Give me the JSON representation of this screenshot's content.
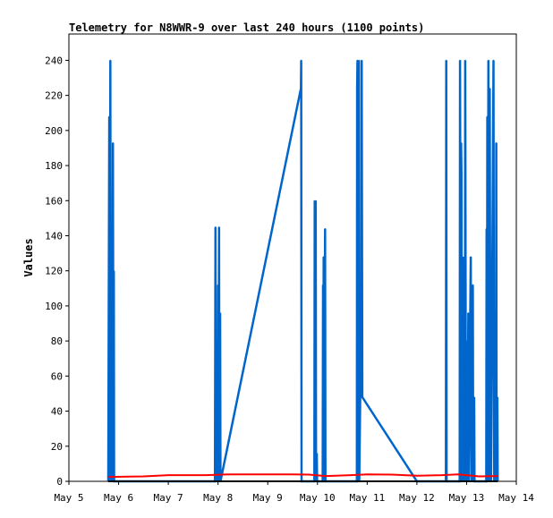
{
  "chart_data": {
    "type": "line",
    "title": "Telemetry for N8WWR-9 over last 240 hours (1100 points)",
    "xlabel": "",
    "ylabel": "Values",
    "xlim": [
      "May 5 00:00",
      "May 14 00:00"
    ],
    "ylim": [
      0,
      255
    ],
    "grid": false,
    "x_ticks": [
      "May 5",
      "May 6",
      "May 7",
      "May 8",
      "May 9",
      "May 10",
      "May 11",
      "May 12",
      "May 13",
      "May 14"
    ],
    "y_ticks": [
      0,
      20,
      40,
      60,
      80,
      100,
      120,
      140,
      160,
      180,
      200,
      220,
      240
    ],
    "series": [
      {
        "color": "#0066cc",
        "style": "spikes",
        "points": [
          [
            "May 5 19:00",
            0
          ],
          [
            "May 5 19:30",
            208
          ],
          [
            "May 5 19:45",
            0
          ],
          [
            "May 5 20:00",
            240
          ],
          [
            "May 5 20:15",
            0
          ],
          [
            "May 5 20:45",
            145
          ],
          [
            "May 5 21:00",
            0
          ],
          [
            "May 5 21:15",
            193
          ],
          [
            "May 5 21:30",
            0
          ],
          [
            "May 5 21:40",
            120
          ],
          [
            "May 5 21:50",
            0
          ],
          [
            "May 7 22:30",
            0
          ],
          [
            "May 7 22:45",
            145
          ],
          [
            "May 7 23:00",
            0
          ],
          [
            "May 7 23:40",
            64
          ],
          [
            "May 7 23:50",
            0
          ],
          [
            "May 8 00:00",
            112
          ],
          [
            "May 8 00:10",
            0
          ],
          [
            "May 8 00:30",
            145
          ],
          [
            "May 8 00:40",
            0
          ],
          [
            "May 8 01:00",
            96
          ],
          [
            "May 8 01:10",
            0
          ],
          [
            "May 9 16:00",
            224
          ],
          [
            "May 9 16:10",
            240
          ],
          [
            "May 9 16:20",
            0
          ],
          [
            "May 9 22:30",
            0
          ],
          [
            "May 9 22:40",
            160
          ],
          [
            "May 9 22:50",
            64
          ],
          [
            "May 9 23:10",
            160
          ],
          [
            "May 9 23:20",
            0
          ],
          [
            "May 9 23:40",
            16
          ],
          [
            "May 9 23:50",
            0
          ],
          [
            "May 10 02:30",
            0
          ],
          [
            "May 10 02:40",
            112
          ],
          [
            "May 10 02:50",
            0
          ],
          [
            "May 10 03:00",
            128
          ],
          [
            "May 10 03:10",
            0
          ],
          [
            "May 10 03:40",
            144
          ],
          [
            "May 10 03:50",
            0
          ],
          [
            "May 10 19:00",
            0
          ],
          [
            "May 10 19:10",
            224
          ],
          [
            "May 10 19:20",
            240
          ],
          [
            "May 10 19:40",
            0
          ],
          [
            "May 10 20:00",
            240
          ],
          [
            "May 10 20:10",
            0
          ],
          [
            "May 10 21:10",
            104
          ],
          [
            "May 10 21:20",
            240
          ],
          [
            "May 10 21:40",
            48
          ],
          [
            "May 12 00:00",
            0
          ],
          [
            "May 12 14:00",
            0
          ],
          [
            "May 12 14:10",
            240
          ],
          [
            "May 12 14:20",
            0
          ],
          [
            "May 12 20:40",
            0
          ],
          [
            "May 12 20:50",
            240
          ],
          [
            "May 12 21:00",
            144
          ],
          [
            "May 12 21:20",
            193
          ],
          [
            "May 12 21:30",
            176
          ],
          [
            "May 12 21:40",
            0
          ],
          [
            "May 12 22:00",
            128
          ],
          [
            "May 12 22:10",
            0
          ],
          [
            "May 12 23:00",
            128
          ],
          [
            "May 12 23:10",
            0
          ],
          [
            "May 12 23:20",
            240
          ],
          [
            "May 12 23:30",
            128
          ],
          [
            "May 12 23:40",
            0
          ],
          [
            "May 13 00:00",
            80
          ],
          [
            "May 13 00:10",
            64
          ],
          [
            "May 13 00:20",
            0
          ],
          [
            "May 13 00:50",
            96
          ],
          [
            "May 13 01:00",
            0
          ],
          [
            "May 13 02:00",
            128
          ],
          [
            "May 13 02:10",
            48
          ],
          [
            "May 13 02:20",
            0
          ],
          [
            "May 13 03:00",
            112
          ],
          [
            "May 13 03:10",
            0
          ],
          [
            "May 13 03:40",
            48
          ],
          [
            "May 13 03:50",
            0
          ],
          [
            "May 13 09:30",
            0
          ],
          [
            "May 13 09:40",
            144
          ],
          [
            "May 13 09:50",
            0
          ],
          [
            "May 13 10:00",
            208
          ],
          [
            "May 13 10:10",
            0
          ],
          [
            "May 13 10:30",
            240
          ],
          [
            "May 13 10:40",
            160
          ],
          [
            "May 13 10:50",
            0
          ],
          [
            "May 13 11:10",
            224
          ],
          [
            "May 13 11:20",
            128
          ],
          [
            "May 13 11:30",
            0
          ],
          [
            "May 13 11:40",
            32
          ],
          [
            "May 13 11:50",
            0
          ],
          [
            "May 13 13:00",
            240
          ],
          [
            "May 13 13:10",
            80
          ],
          [
            "May 13 13:20",
            0
          ],
          [
            "May 13 14:00",
            96
          ],
          [
            "May 13 14:10",
            0
          ],
          [
            "May 13 14:20",
            193
          ],
          [
            "May 13 14:30",
            0
          ],
          [
            "May 13 14:50",
            48
          ],
          [
            "May 13 15:00",
            0
          ]
        ]
      },
      {
        "color": "#ff0000",
        "style": "line",
        "points": [
          [
            "May 5 19:00",
            2.5
          ],
          [
            "May 6 12:00",
            2.8
          ],
          [
            "May 7 00:00",
            3.5
          ],
          [
            "May 7 18:00",
            3.5
          ],
          [
            "May 8 06:00",
            4.0
          ],
          [
            "May 9 00:00",
            4.0
          ],
          [
            "May 9 12:00",
            4.0
          ],
          [
            "May 9 20:00",
            3.8
          ],
          [
            "May 10 04:00",
            3.0
          ],
          [
            "May 10 16:00",
            3.5
          ],
          [
            "May 11 00:00",
            4.0
          ],
          [
            "May 11 12:00",
            3.8
          ],
          [
            "May 12 00:00",
            3.2
          ],
          [
            "May 12 12:00",
            3.5
          ],
          [
            "May 12 20:00",
            4.0
          ],
          [
            "May 13 06:00",
            2.8
          ],
          [
            "May 13 15:00",
            3.0
          ]
        ]
      },
      {
        "color": "#000000",
        "style": "line",
        "points": [
          [
            "May 5 19:00",
            0
          ],
          [
            "May 13 15:00",
            0
          ]
        ]
      }
    ]
  }
}
